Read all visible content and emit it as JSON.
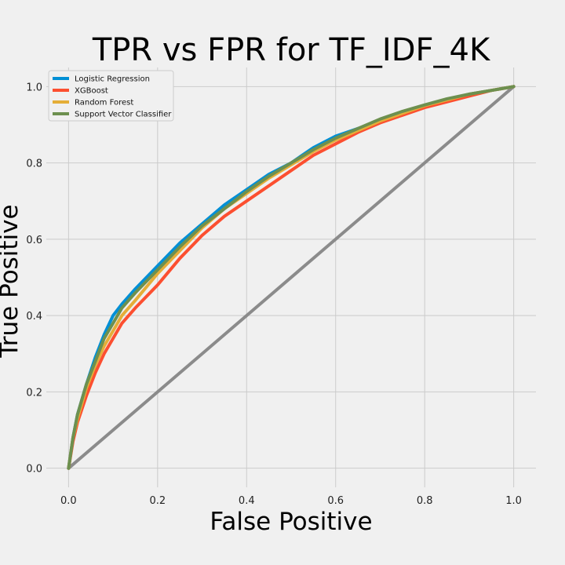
{
  "chart_data": {
    "type": "line",
    "title": "TPR vs FPR for TF_IDF_4K",
    "xlabel": "False Positive",
    "ylabel": "True Positive",
    "xlim": [
      -0.05,
      1.05
    ],
    "ylim": [
      -0.05,
      1.05
    ],
    "x_ticks": [
      "0.0",
      "0.2",
      "0.4",
      "0.6",
      "0.8",
      "1.0"
    ],
    "y_ticks": [
      "0.0",
      "0.2",
      "0.4",
      "0.6",
      "0.8",
      "1.0"
    ],
    "grid": true,
    "legend_position": "upper left",
    "series": [
      {
        "name": "Logistic Regression",
        "color": "#008fd5",
        "x": [
          0,
          0.01,
          0.02,
          0.04,
          0.06,
          0.08,
          0.1,
          0.12,
          0.15,
          0.2,
          0.25,
          0.3,
          0.35,
          0.4,
          0.45,
          0.5,
          0.55,
          0.6,
          0.65,
          0.7,
          0.75,
          0.8,
          0.85,
          0.9,
          0.95,
          1.0
        ],
        "y": [
          0,
          0.08,
          0.14,
          0.22,
          0.29,
          0.35,
          0.4,
          0.43,
          0.47,
          0.53,
          0.59,
          0.64,
          0.69,
          0.73,
          0.77,
          0.8,
          0.84,
          0.87,
          0.89,
          0.91,
          0.93,
          0.95,
          0.965,
          0.98,
          0.99,
          1.0
        ]
      },
      {
        "name": "XGBoost",
        "color": "#fc4f30",
        "x": [
          0,
          0.01,
          0.02,
          0.04,
          0.06,
          0.08,
          0.1,
          0.12,
          0.15,
          0.2,
          0.25,
          0.3,
          0.35,
          0.4,
          0.45,
          0.5,
          0.55,
          0.6,
          0.65,
          0.7,
          0.75,
          0.8,
          0.85,
          0.9,
          0.95,
          1.0
        ],
        "y": [
          0,
          0.07,
          0.12,
          0.19,
          0.25,
          0.3,
          0.34,
          0.38,
          0.42,
          0.48,
          0.55,
          0.61,
          0.66,
          0.7,
          0.74,
          0.78,
          0.82,
          0.85,
          0.88,
          0.905,
          0.925,
          0.945,
          0.96,
          0.975,
          0.99,
          1.0
        ]
      },
      {
        "name": "Random Forest",
        "color": "#e5ae38",
        "x": [
          0,
          0.01,
          0.02,
          0.04,
          0.06,
          0.08,
          0.1,
          0.12,
          0.15,
          0.2,
          0.25,
          0.3,
          0.35,
          0.4,
          0.45,
          0.5,
          0.55,
          0.6,
          0.65,
          0.7,
          0.75,
          0.8,
          0.85,
          0.9,
          0.95,
          1.0
        ],
        "y": [
          0,
          0.08,
          0.13,
          0.21,
          0.27,
          0.32,
          0.36,
          0.4,
          0.44,
          0.51,
          0.57,
          0.63,
          0.68,
          0.72,
          0.76,
          0.795,
          0.83,
          0.86,
          0.885,
          0.91,
          0.93,
          0.95,
          0.965,
          0.98,
          0.99,
          1.0
        ]
      },
      {
        "name": "Support Vector Classifier",
        "color": "#6d904f",
        "x": [
          0,
          0.01,
          0.02,
          0.04,
          0.06,
          0.08,
          0.1,
          0.12,
          0.15,
          0.2,
          0.25,
          0.3,
          0.35,
          0.4,
          0.45,
          0.5,
          0.55,
          0.6,
          0.65,
          0.7,
          0.75,
          0.8,
          0.85,
          0.9,
          0.95,
          1.0
        ],
        "y": [
          0,
          0.08,
          0.14,
          0.22,
          0.28,
          0.34,
          0.38,
          0.42,
          0.46,
          0.52,
          0.58,
          0.635,
          0.68,
          0.725,
          0.765,
          0.8,
          0.835,
          0.865,
          0.89,
          0.915,
          0.935,
          0.952,
          0.968,
          0.98,
          0.99,
          1.0
        ]
      },
      {
        "name": "",
        "color": "#8b8b8b",
        "x": [
          0,
          1
        ],
        "y": [
          0,
          1
        ]
      }
    ]
  }
}
